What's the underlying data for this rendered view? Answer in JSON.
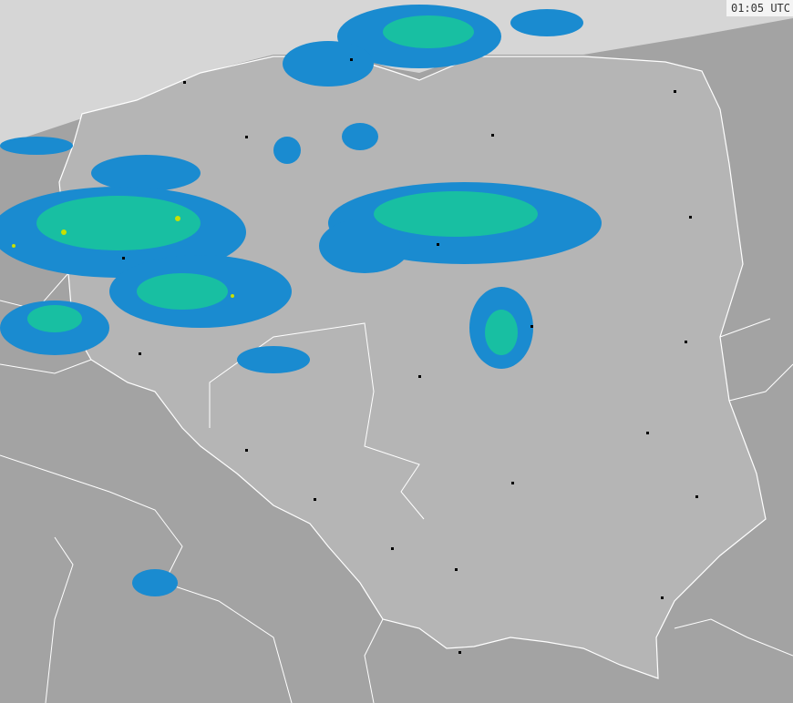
{
  "timestamp": "01:05 UTC",
  "colors": {
    "sea": "#d6d6d6",
    "land_outside": "#a3a3a3",
    "country": "#b5b5b5",
    "border": "#ffffff",
    "radar_light": "#1a8bd0",
    "radar_medium": "#18bfa2",
    "radar_heavy": "#c8e000",
    "city": "#000000"
  },
  "layers": [
    "sea",
    "land",
    "country-borders",
    "radar-precipitation",
    "cities"
  ]
}
